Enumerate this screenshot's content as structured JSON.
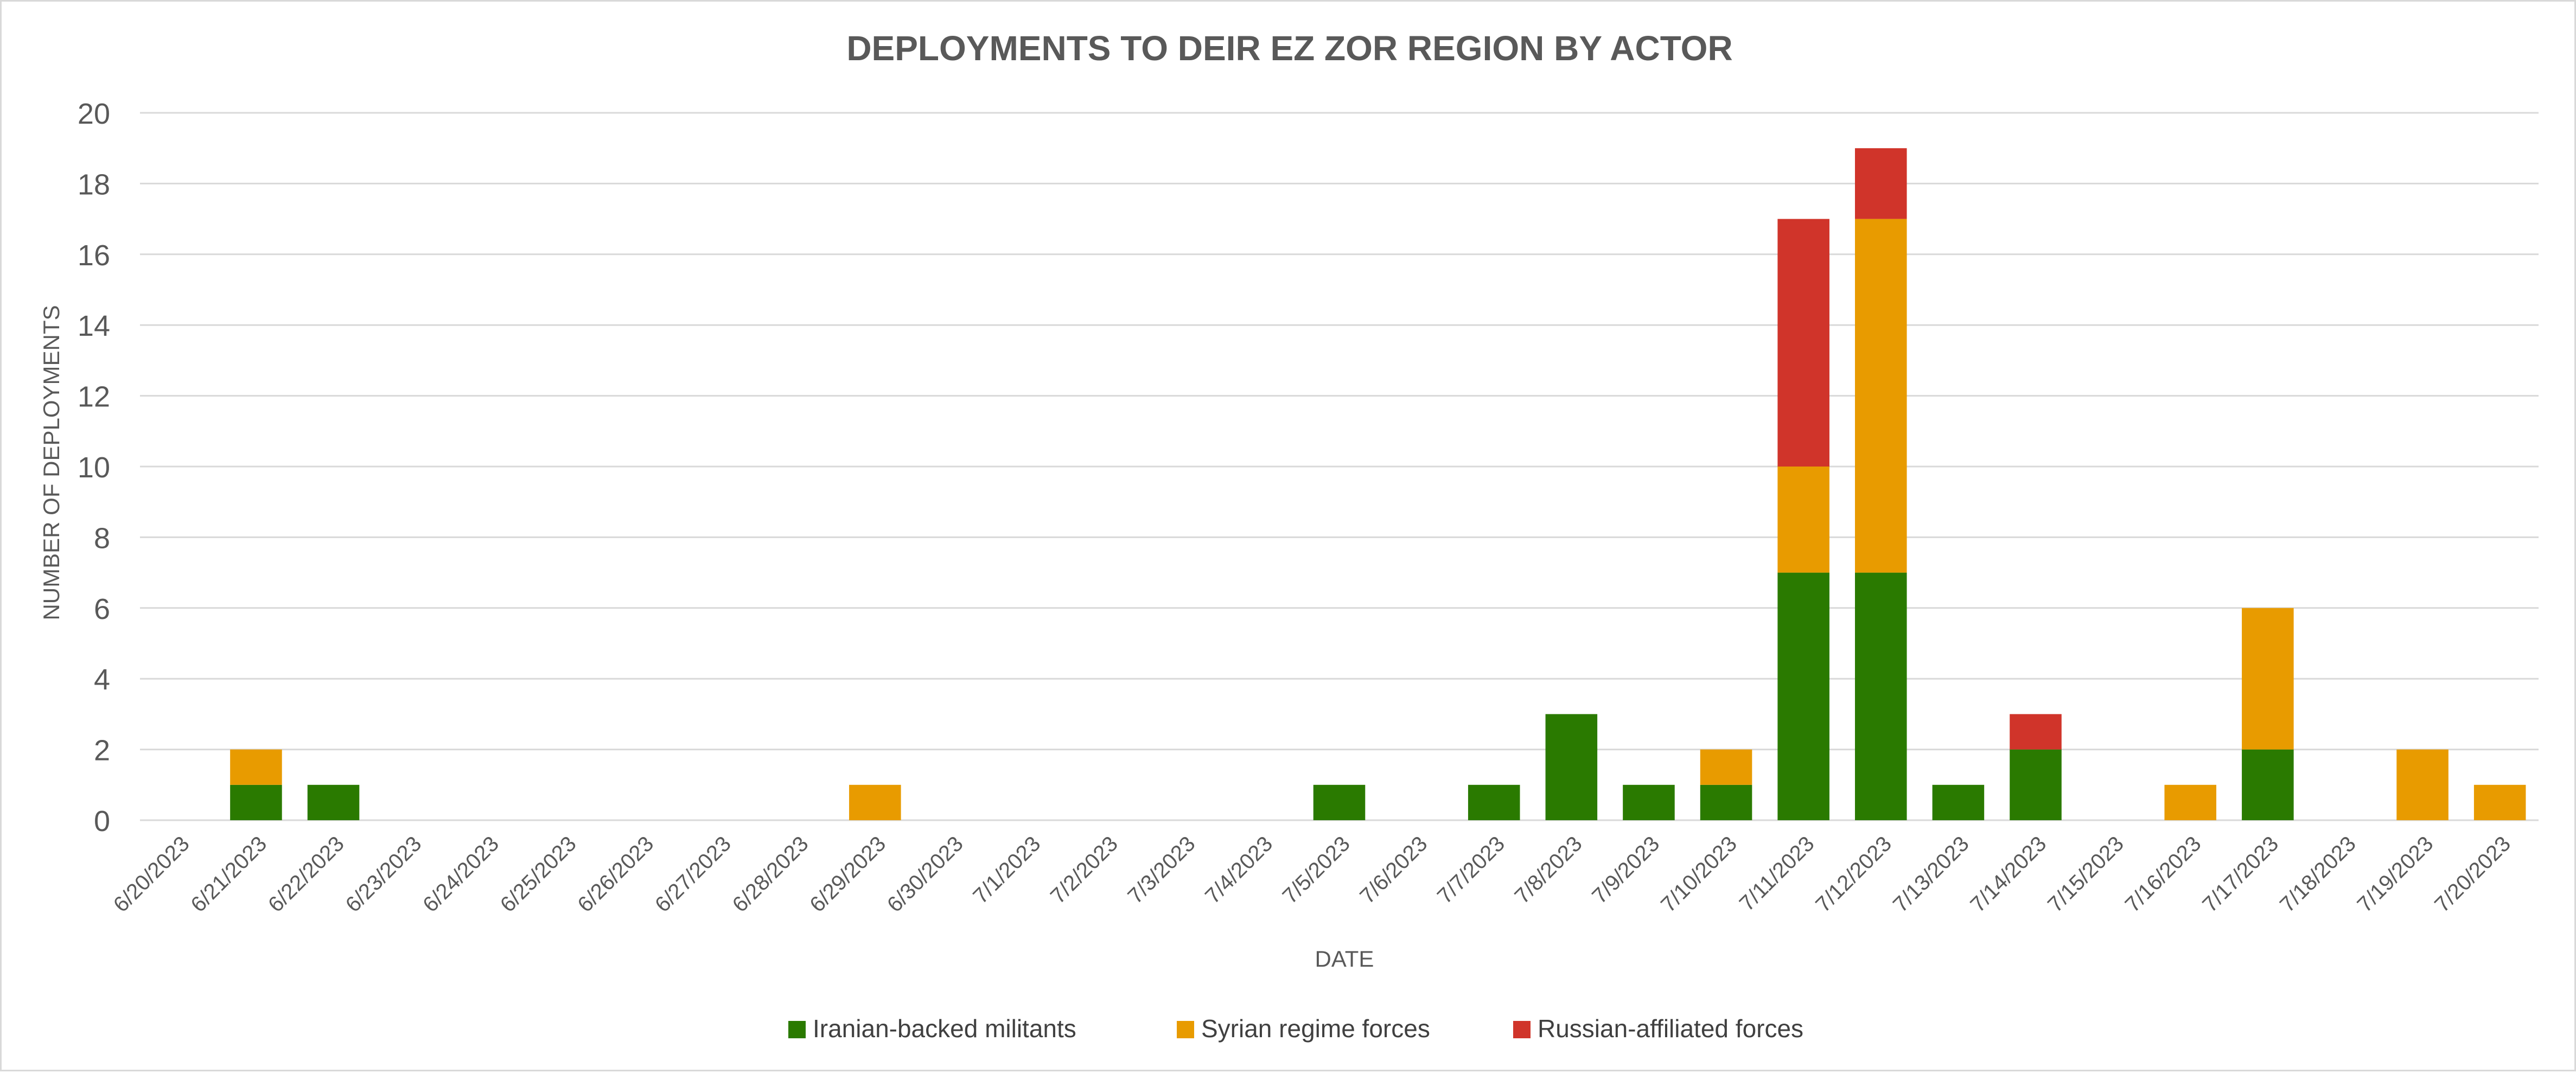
{
  "chart_data": {
    "type": "bar",
    "stacked": true,
    "title": "DEPLOYMENTS TO DEIR EZ ZOR REGION BY ACTOR",
    "xlabel": "DATE",
    "ylabel": "NUMBER OF DEPLOYMENTS",
    "ylim": [
      0,
      20
    ],
    "yticks": [
      0,
      2,
      4,
      6,
      8,
      10,
      12,
      14,
      16,
      18,
      20
    ],
    "grid": true,
    "legend_position": "bottom",
    "categories": [
      "6/20/2023",
      "6/21/2023",
      "6/22/2023",
      "6/23/2023",
      "6/24/2023",
      "6/25/2023",
      "6/26/2023",
      "6/27/2023",
      "6/28/2023",
      "6/29/2023",
      "6/30/2023",
      "7/1/2023",
      "7/2/2023",
      "7/3/2023",
      "7/4/2023",
      "7/5/2023",
      "7/6/2023",
      "7/7/2023",
      "7/8/2023",
      "7/9/2023",
      "7/10/2023",
      "7/11/2023",
      "7/12/2023",
      "7/13/2023",
      "7/14/2023",
      "7/15/2023",
      "7/16/2023",
      "7/17/2023",
      "7/18/2023",
      "7/19/2023",
      "7/20/2023"
    ],
    "series": [
      {
        "name": "Iranian-backed militants",
        "color": "#2a7a00",
        "values": [
          0,
          1,
          1,
          0,
          0,
          0,
          0,
          0,
          0,
          0,
          0,
          0,
          0,
          0,
          0,
          1,
          0,
          1,
          3,
          1,
          1,
          7,
          7,
          1,
          2,
          0,
          0,
          2,
          0,
          0,
          0
        ]
      },
      {
        "name": "Syrian regime forces",
        "color": "#e89b00",
        "values": [
          0,
          1,
          0,
          0,
          0,
          0,
          0,
          0,
          0,
          1,
          0,
          0,
          0,
          0,
          0,
          0,
          0,
          0,
          0,
          0,
          1,
          3,
          10,
          0,
          0,
          0,
          1,
          4,
          0,
          2,
          1
        ]
      },
      {
        "name": "Russian-affiliated forces",
        "color": "#d0342a",
        "values": [
          0,
          0,
          0,
          0,
          0,
          0,
          0,
          0,
          0,
          0,
          0,
          0,
          0,
          0,
          0,
          0,
          0,
          0,
          0,
          0,
          0,
          7,
          2,
          0,
          1,
          0,
          0,
          0,
          0,
          0,
          0
        ]
      }
    ]
  }
}
